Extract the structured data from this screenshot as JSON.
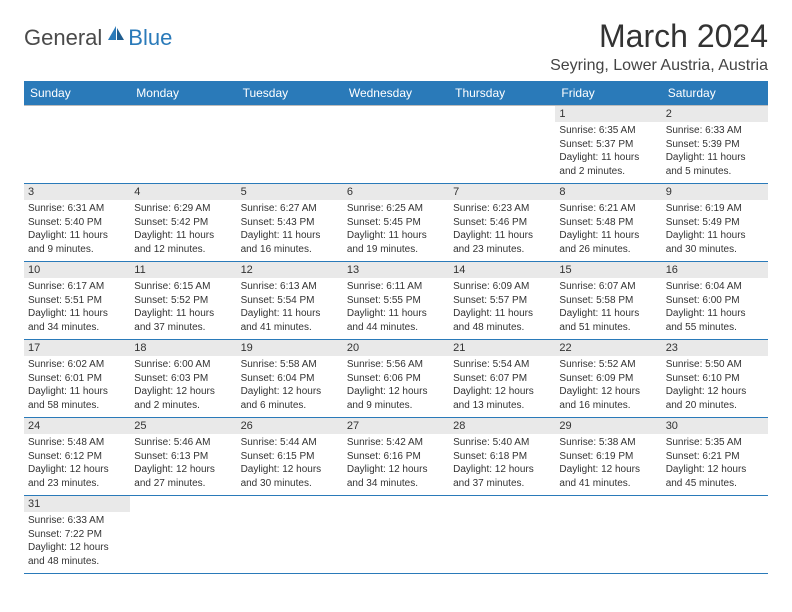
{
  "brand": {
    "main": "General",
    "accent": "Blue"
  },
  "title": "March 2024",
  "location": "Seyring, Lower Austria, Austria",
  "colors": {
    "header_bg": "#2a7ab9",
    "header_fg": "#ffffff",
    "daynum_bg": "#e9e9e9",
    "row_divider": "#2a7ab9",
    "cell_border": "#bcbcbc",
    "text": "#333333"
  },
  "day_headers": [
    "Sunday",
    "Monday",
    "Tuesday",
    "Wednesday",
    "Thursday",
    "Friday",
    "Saturday"
  ],
  "weeks": [
    [
      null,
      null,
      null,
      null,
      null,
      {
        "n": "1",
        "sr": "Sunrise: 6:35 AM",
        "ss": "Sunset: 5:37 PM",
        "dl1": "Daylight: 11 hours",
        "dl2": "and 2 minutes."
      },
      {
        "n": "2",
        "sr": "Sunrise: 6:33 AM",
        "ss": "Sunset: 5:39 PM",
        "dl1": "Daylight: 11 hours",
        "dl2": "and 5 minutes."
      }
    ],
    [
      {
        "n": "3",
        "sr": "Sunrise: 6:31 AM",
        "ss": "Sunset: 5:40 PM",
        "dl1": "Daylight: 11 hours",
        "dl2": "and 9 minutes."
      },
      {
        "n": "4",
        "sr": "Sunrise: 6:29 AM",
        "ss": "Sunset: 5:42 PM",
        "dl1": "Daylight: 11 hours",
        "dl2": "and 12 minutes."
      },
      {
        "n": "5",
        "sr": "Sunrise: 6:27 AM",
        "ss": "Sunset: 5:43 PM",
        "dl1": "Daylight: 11 hours",
        "dl2": "and 16 minutes."
      },
      {
        "n": "6",
        "sr": "Sunrise: 6:25 AM",
        "ss": "Sunset: 5:45 PM",
        "dl1": "Daylight: 11 hours",
        "dl2": "and 19 minutes."
      },
      {
        "n": "7",
        "sr": "Sunrise: 6:23 AM",
        "ss": "Sunset: 5:46 PM",
        "dl1": "Daylight: 11 hours",
        "dl2": "and 23 minutes."
      },
      {
        "n": "8",
        "sr": "Sunrise: 6:21 AM",
        "ss": "Sunset: 5:48 PM",
        "dl1": "Daylight: 11 hours",
        "dl2": "and 26 minutes."
      },
      {
        "n": "9",
        "sr": "Sunrise: 6:19 AM",
        "ss": "Sunset: 5:49 PM",
        "dl1": "Daylight: 11 hours",
        "dl2": "and 30 minutes."
      }
    ],
    [
      {
        "n": "10",
        "sr": "Sunrise: 6:17 AM",
        "ss": "Sunset: 5:51 PM",
        "dl1": "Daylight: 11 hours",
        "dl2": "and 34 minutes."
      },
      {
        "n": "11",
        "sr": "Sunrise: 6:15 AM",
        "ss": "Sunset: 5:52 PM",
        "dl1": "Daylight: 11 hours",
        "dl2": "and 37 minutes."
      },
      {
        "n": "12",
        "sr": "Sunrise: 6:13 AM",
        "ss": "Sunset: 5:54 PM",
        "dl1": "Daylight: 11 hours",
        "dl2": "and 41 minutes."
      },
      {
        "n": "13",
        "sr": "Sunrise: 6:11 AM",
        "ss": "Sunset: 5:55 PM",
        "dl1": "Daylight: 11 hours",
        "dl2": "and 44 minutes."
      },
      {
        "n": "14",
        "sr": "Sunrise: 6:09 AM",
        "ss": "Sunset: 5:57 PM",
        "dl1": "Daylight: 11 hours",
        "dl2": "and 48 minutes."
      },
      {
        "n": "15",
        "sr": "Sunrise: 6:07 AM",
        "ss": "Sunset: 5:58 PM",
        "dl1": "Daylight: 11 hours",
        "dl2": "and 51 minutes."
      },
      {
        "n": "16",
        "sr": "Sunrise: 6:04 AM",
        "ss": "Sunset: 6:00 PM",
        "dl1": "Daylight: 11 hours",
        "dl2": "and 55 minutes."
      }
    ],
    [
      {
        "n": "17",
        "sr": "Sunrise: 6:02 AM",
        "ss": "Sunset: 6:01 PM",
        "dl1": "Daylight: 11 hours",
        "dl2": "and 58 minutes."
      },
      {
        "n": "18",
        "sr": "Sunrise: 6:00 AM",
        "ss": "Sunset: 6:03 PM",
        "dl1": "Daylight: 12 hours",
        "dl2": "and 2 minutes."
      },
      {
        "n": "19",
        "sr": "Sunrise: 5:58 AM",
        "ss": "Sunset: 6:04 PM",
        "dl1": "Daylight: 12 hours",
        "dl2": "and 6 minutes."
      },
      {
        "n": "20",
        "sr": "Sunrise: 5:56 AM",
        "ss": "Sunset: 6:06 PM",
        "dl1": "Daylight: 12 hours",
        "dl2": "and 9 minutes."
      },
      {
        "n": "21",
        "sr": "Sunrise: 5:54 AM",
        "ss": "Sunset: 6:07 PM",
        "dl1": "Daylight: 12 hours",
        "dl2": "and 13 minutes."
      },
      {
        "n": "22",
        "sr": "Sunrise: 5:52 AM",
        "ss": "Sunset: 6:09 PM",
        "dl1": "Daylight: 12 hours",
        "dl2": "and 16 minutes."
      },
      {
        "n": "23",
        "sr": "Sunrise: 5:50 AM",
        "ss": "Sunset: 6:10 PM",
        "dl1": "Daylight: 12 hours",
        "dl2": "and 20 minutes."
      }
    ],
    [
      {
        "n": "24",
        "sr": "Sunrise: 5:48 AM",
        "ss": "Sunset: 6:12 PM",
        "dl1": "Daylight: 12 hours",
        "dl2": "and 23 minutes."
      },
      {
        "n": "25",
        "sr": "Sunrise: 5:46 AM",
        "ss": "Sunset: 6:13 PM",
        "dl1": "Daylight: 12 hours",
        "dl2": "and 27 minutes."
      },
      {
        "n": "26",
        "sr": "Sunrise: 5:44 AM",
        "ss": "Sunset: 6:15 PM",
        "dl1": "Daylight: 12 hours",
        "dl2": "and 30 minutes."
      },
      {
        "n": "27",
        "sr": "Sunrise: 5:42 AM",
        "ss": "Sunset: 6:16 PM",
        "dl1": "Daylight: 12 hours",
        "dl2": "and 34 minutes."
      },
      {
        "n": "28",
        "sr": "Sunrise: 5:40 AM",
        "ss": "Sunset: 6:18 PM",
        "dl1": "Daylight: 12 hours",
        "dl2": "and 37 minutes."
      },
      {
        "n": "29",
        "sr": "Sunrise: 5:38 AM",
        "ss": "Sunset: 6:19 PM",
        "dl1": "Daylight: 12 hours",
        "dl2": "and 41 minutes."
      },
      {
        "n": "30",
        "sr": "Sunrise: 5:35 AM",
        "ss": "Sunset: 6:21 PM",
        "dl1": "Daylight: 12 hours",
        "dl2": "and 45 minutes."
      }
    ],
    [
      {
        "n": "31",
        "sr": "Sunrise: 6:33 AM",
        "ss": "Sunset: 7:22 PM",
        "dl1": "Daylight: 12 hours",
        "dl2": "and 48 minutes."
      },
      null,
      null,
      null,
      null,
      null,
      null
    ]
  ]
}
